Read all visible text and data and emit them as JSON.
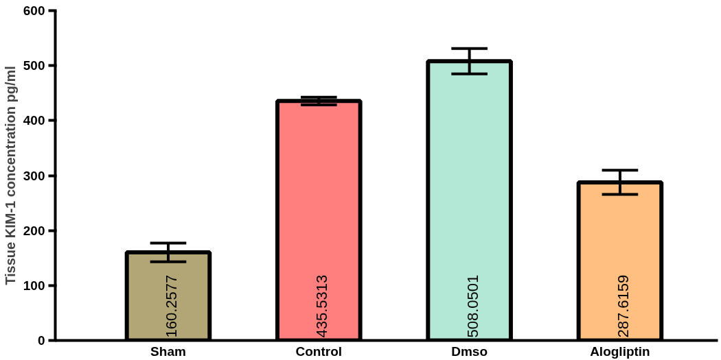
{
  "chart_data": {
    "type": "bar",
    "ylabel": "Tissue KIM-1 concentration pg/ml",
    "categories": [
      "Sham",
      "Control",
      "Dmso",
      "Alogliptin"
    ],
    "values": [
      160.2577,
      435.5313,
      508.0501,
      287.6159
    ],
    "colors": [
      "#b3a676",
      "#ff7f7f",
      "#b3e8d6",
      "#ffbf80"
    ],
    "errors": [
      17,
      7,
      23,
      22
    ],
    "ylim": [
      0,
      600
    ],
    "yticks": [
      0,
      100,
      200,
      300,
      400,
      500,
      600
    ],
    "data_labels": true,
    "grid": false
  }
}
